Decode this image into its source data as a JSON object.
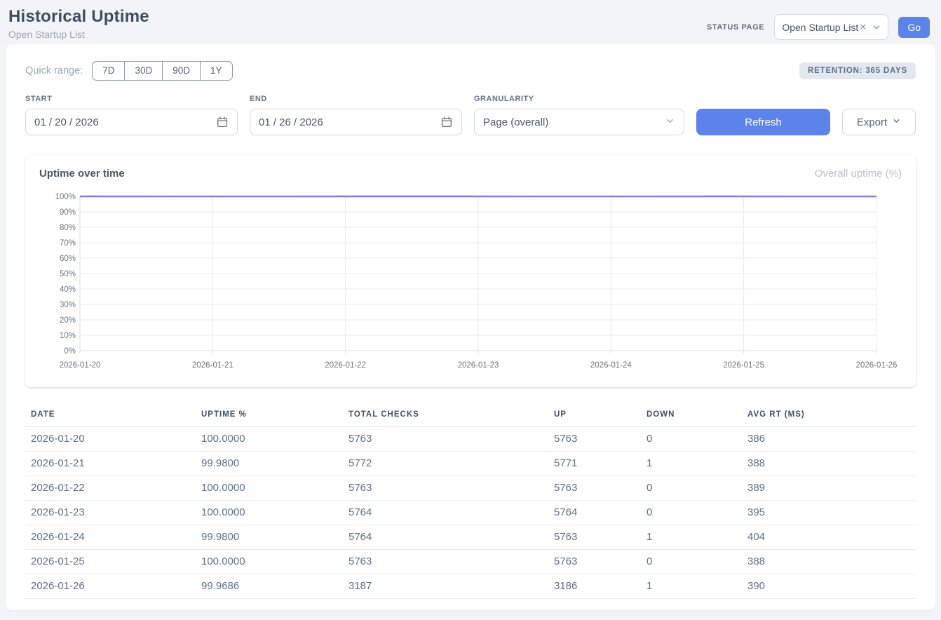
{
  "header": {
    "title": "Historical Uptime",
    "subtitle": "Open Startup List",
    "status_page_label": "STATUS PAGE",
    "status_page_value": "Open Startup List",
    "clear_icon": "✕",
    "go_label": "Go"
  },
  "controls": {
    "quick_range_label": "Quick range:",
    "quick_ranges": [
      "7D",
      "30D",
      "90D",
      "1Y"
    ],
    "retention_badge": "RETENTION: 365 DAYS",
    "start_label": "START",
    "start_value": "01 / 20 / 2026",
    "end_label": "END",
    "end_value": "01 / 26 / 2026",
    "granularity_label": "GRANULARITY",
    "granularity_value": "Page (overall)",
    "refresh_label": "Refresh",
    "export_label": "Export"
  },
  "chart": {
    "title": "Uptime over time",
    "legend": "Overall uptime (%)"
  },
  "chart_data": {
    "type": "line",
    "title": "Uptime over time",
    "x": [
      "2026-01-20",
      "2026-01-21",
      "2026-01-22",
      "2026-01-23",
      "2026-01-24",
      "2026-01-25",
      "2026-01-26"
    ],
    "series": [
      {
        "name": "Overall uptime (%)",
        "values": [
          100.0,
          99.98,
          100.0,
          100.0,
          99.98,
          100.0,
          99.9686
        ]
      }
    ],
    "ylim": [
      0,
      100
    ],
    "y_tick_step": 10,
    "y_tick_suffix": "%",
    "grid": true,
    "legend_position": "top-right",
    "line_color": "#7a80e3"
  },
  "table": {
    "columns": [
      "DATE",
      "UPTIME %",
      "TOTAL CHECKS",
      "UP",
      "DOWN",
      "AVG RT (MS)"
    ],
    "rows": [
      [
        "2026-01-20",
        "100.0000",
        "5763",
        "5763",
        "0",
        "386"
      ],
      [
        "2026-01-21",
        "99.9800",
        "5772",
        "5771",
        "1",
        "388"
      ],
      [
        "2026-01-22",
        "100.0000",
        "5763",
        "5763",
        "0",
        "389"
      ],
      [
        "2026-01-23",
        "100.0000",
        "5764",
        "5764",
        "0",
        "395"
      ],
      [
        "2026-01-24",
        "99.9800",
        "5764",
        "5763",
        "1",
        "404"
      ],
      [
        "2026-01-25",
        "100.0000",
        "5763",
        "5763",
        "0",
        "388"
      ],
      [
        "2026-01-26",
        "99.9686",
        "3187",
        "3186",
        "1",
        "390"
      ]
    ]
  },
  "colors": {
    "accent_blue": "#5c83ea",
    "chart_line": "#7a80e3",
    "grid_line": "#e7e9ed",
    "axis_line": "#d9dde3"
  }
}
